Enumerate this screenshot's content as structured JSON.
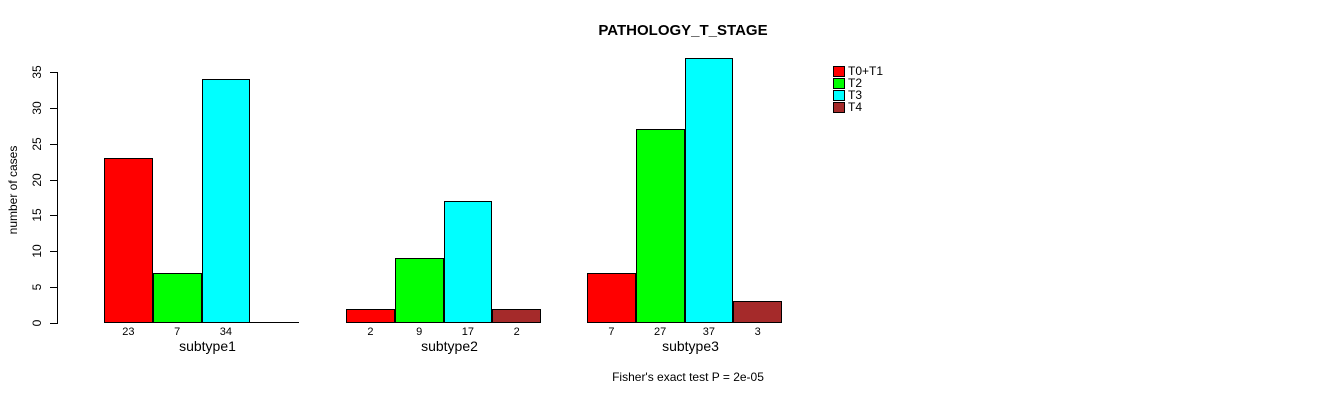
{
  "chart_data": {
    "type": "bar",
    "title": "PATHOLOGY_T_STAGE",
    "xlabel": "",
    "ylabel": "number of cases",
    "categories": [
      "subtype1",
      "subtype2",
      "subtype3"
    ],
    "series": [
      {
        "name": "T0+T1",
        "color": "#ff0000",
        "values": [
          23,
          2,
          7
        ]
      },
      {
        "name": "T2",
        "color": "#00ff00",
        "values": [
          7,
          9,
          27
        ]
      },
      {
        "name": "T3",
        "color": "#00ffff",
        "values": [
          34,
          17,
          37
        ]
      },
      {
        "name": "T4",
        "color": "#a52a2a",
        "values": [
          0,
          2,
          3
        ]
      }
    ],
    "yticks": [
      0,
      5,
      10,
      15,
      20,
      25,
      30,
      35
    ],
    "ylim": [
      0,
      37
    ],
    "grid": false,
    "legend_position": "top-right",
    "legend_entries": [
      "T0+T1",
      "T2",
      "T3",
      "T4"
    ],
    "bar_value_labels": {
      "show": true,
      "hide_zero": true
    },
    "annotation": "Fisher's exact test P = 2e-05",
    "background": "#ffffff",
    "bar_border_color": "#000000"
  }
}
